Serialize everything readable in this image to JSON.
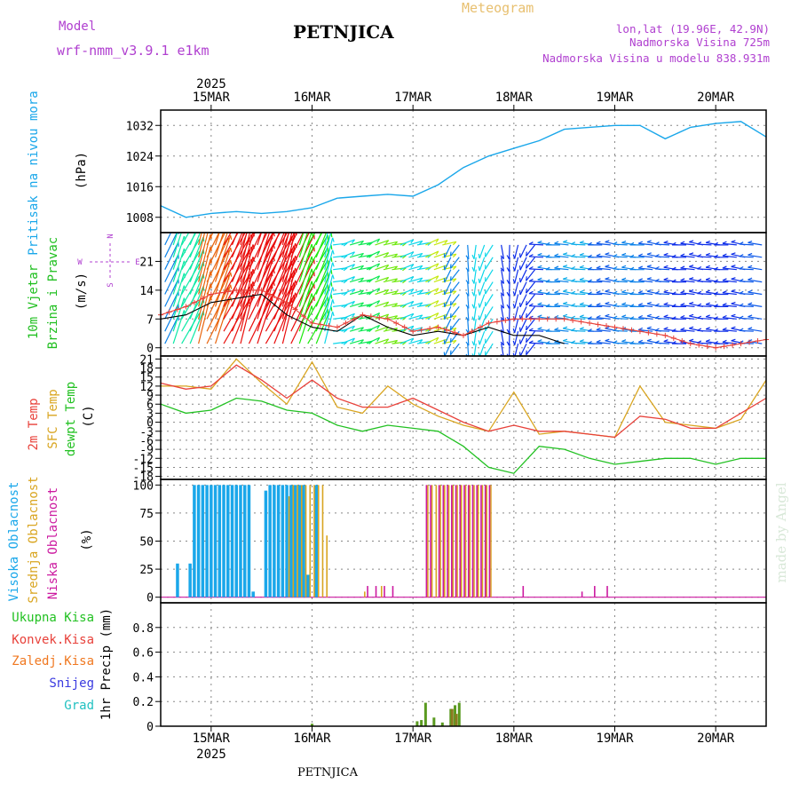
{
  "header": {
    "title": "PETNJICA",
    "subtitle": "Meteogram",
    "model_label": "Model",
    "model_name": "wrf-nmm_v3.9.1 e1km",
    "lonlat": "lon,lat (19.96E, 42.9N)",
    "elevation": "Nadmorska Visina 725m",
    "model_elevation": "Nadmorska Visina u modelu 838.931m",
    "watermark": "made by Angel",
    "footer": "PETNJICA",
    "year": "2025"
  },
  "colors": {
    "pressure": "#1aa7ea",
    "wind_label": "#1fbf1f",
    "temp2m": "#e8413a",
    "sfc": "#d9a520",
    "dewpt": "#22c122",
    "high_cloud": "#1aa7ea",
    "mid_cloud": "#d9a520",
    "low_cloud": "#cc1aa0",
    "total_precip": "#22c122",
    "conv_precip": "#e8413a",
    "frozen_precip": "#f07820",
    "snow": "#3a3ae0",
    "hail": "#22c1c1",
    "legend_purple": "#b040d0",
    "legend_orange": "#e8c070"
  },
  "chart_data": [
    {
      "type": "line",
      "id": "pressure",
      "ylabel": [
        "Pritisak na nivou mora",
        "(hPa)"
      ],
      "ylim": [
        1004,
        1036
      ],
      "yticks": [
        1008,
        1016,
        1024,
        1032
      ],
      "x_unit": "hours since 2025-03-14 12:00",
      "series": [
        {
          "name": "",
          "x": [
            0,
            6,
            12,
            18,
            24,
            30,
            36,
            42,
            48,
            54,
            60,
            66,
            72,
            78,
            84,
            90,
            96,
            102,
            108,
            114,
            120,
            126,
            132,
            138,
            144
          ],
          "values": [
            1011,
            1008,
            1009,
            1009.5,
            1009,
            1009.5,
            1010.5,
            1013,
            1013.5,
            1014,
            1013.5,
            1016.5,
            1021,
            1024,
            1026,
            1028,
            1031,
            1031.5,
            1032,
            1032,
            1028.5,
            1031.5,
            1032.5,
            1033,
            1029
          ]
        }
      ]
    },
    {
      "type": "line",
      "id": "wind",
      "ylabel": [
        "10m Vjetar",
        "Brzina i Pravac",
        "(m/s)"
      ],
      "ylim": [
        -2,
        28
      ],
      "yticks": [
        0,
        7,
        14,
        21
      ],
      "compass": {
        "n": "N",
        "s": "S",
        "e": "E",
        "w": "W"
      },
      "series": [
        {
          "name": "",
          "x": [
            0,
            6,
            12,
            18,
            24,
            30,
            36,
            42,
            48,
            54,
            60,
            66,
            72,
            78,
            84,
            90,
            96
          ],
          "values": [
            7,
            8,
            11,
            12,
            13,
            8,
            5,
            4,
            8,
            5,
            3,
            4,
            3,
            5,
            3,
            3,
            1
          ]
        },
        {
          "name": "",
          "x": [
            0,
            6,
            12,
            18,
            24,
            30,
            36,
            42,
            48,
            54,
            60,
            66,
            72,
            78,
            84,
            90,
            96,
            102,
            108,
            114,
            120,
            126,
            132,
            138,
            144
          ],
          "values": [
            8,
            10,
            13,
            14,
            14,
            11,
            6,
            5,
            8,
            7,
            4,
            5,
            3,
            6,
            7,
            7,
            7,
            6,
            5,
            4,
            3,
            1,
            0,
            1,
            2
          ]
        }
      ],
      "barb_speeds": [
        8,
        12,
        24,
        26,
        27,
        27,
        16,
        10,
        14,
        18,
        10,
        20,
        8,
        10,
        6,
        6,
        8,
        9,
        7,
        8,
        7,
        6,
        6,
        6,
        7
      ]
    },
    {
      "type": "line",
      "id": "temperature",
      "ylabel": [
        "2m Temp",
        "SFC Temp",
        "dewpt Temp",
        "(C)"
      ],
      "ylim": [
        -19,
        22
      ],
      "yticks": [
        -18,
        -15,
        -12,
        -9,
        -6,
        -3,
        0,
        3,
        6,
        9,
        12,
        15,
        18,
        21
      ],
      "series": [
        {
          "name": "2m Temp",
          "x": [
            0,
            6,
            12,
            18,
            24,
            30,
            36,
            42,
            48,
            54,
            60,
            66,
            72,
            78,
            84,
            90,
            96,
            102,
            108,
            114,
            120,
            126,
            132,
            138,
            144
          ],
          "values": [
            13,
            11,
            12,
            19,
            14,
            8,
            14,
            8,
            5,
            5,
            8,
            4,
            0,
            -3,
            -1,
            -3,
            -3,
            -4,
            -5,
            2,
            1,
            -2,
            -2,
            3,
            8
          ]
        },
        {
          "name": "SFC Temp",
          "x": [
            0,
            6,
            12,
            18,
            24,
            30,
            36,
            42,
            48,
            54,
            60,
            66,
            72,
            78,
            84,
            90,
            96,
            102,
            108,
            114,
            120,
            126,
            132,
            138,
            144
          ],
          "values": [
            12,
            12,
            11,
            21,
            13,
            6,
            20,
            5,
            3,
            12,
            6,
            2,
            -1,
            -3,
            10,
            -4,
            -3,
            -4,
            -5,
            12,
            0,
            -1,
            -2,
            1,
            14
          ]
        },
        {
          "name": "dewpt Temp",
          "x": [
            0,
            6,
            12,
            18,
            24,
            30,
            36,
            42,
            48,
            54,
            60,
            66,
            72,
            78,
            84,
            90,
            96,
            102,
            108,
            114,
            120,
            126,
            132,
            138,
            144
          ],
          "values": [
            6,
            3,
            4,
            8,
            7,
            4,
            3,
            -1,
            -3,
            -1,
            -2,
            -3,
            -8,
            -15,
            -17,
            -8,
            -9,
            -12,
            -14,
            -13,
            -12,
            -12,
            -14,
            -12,
            -12
          ]
        }
      ]
    },
    {
      "type": "bar",
      "id": "cloud",
      "ylabel": [
        "Visoka Oblacnost",
        "Srednja Oblacnost",
        "Niska Oblacnost",
        "(%)"
      ],
      "ylim": [
        -5,
        105
      ],
      "yticks": [
        0,
        25,
        50,
        75,
        100
      ],
      "series": [
        {
          "name": "Visoka Oblacnost",
          "x": [
            4,
            7,
            8,
            9,
            10,
            11,
            12,
            13,
            14,
            15,
            16,
            17,
            18,
            19,
            20,
            21,
            22,
            25,
            26,
            27,
            28,
            29,
            30,
            31,
            32,
            33,
            34,
            35,
            37
          ],
          "values": [
            30,
            30,
            100,
            100,
            100,
            100,
            100,
            100,
            100,
            100,
            100,
            100,
            100,
            100,
            100,
            100,
            5,
            95,
            100,
            100,
            100,
            100,
            100,
            100,
            100,
            100,
            100,
            20,
            100
          ]
        },
        {
          "name": "Srednja Oblacnost",
          "x": [
            30,
            31,
            32,
            33,
            34,
            35,
            36,
            37,
            38,
            39,
            48,
            52,
            63,
            64,
            65,
            66,
            67,
            68,
            69,
            70,
            71,
            72,
            73,
            74,
            75,
            76,
            77,
            78
          ],
          "values": [
            90,
            100,
            100,
            100,
            100,
            100,
            100,
            100,
            100,
            55,
            5,
            10,
            100,
            100,
            100,
            100,
            100,
            100,
            100,
            100,
            100,
            100,
            100,
            100,
            100,
            100,
            100,
            100
          ]
        },
        {
          "name": "Niska Oblacnost",
          "x": [
            49,
            51,
            53,
            55,
            63,
            64,
            66,
            67,
            68,
            69,
            70,
            71,
            72,
            73,
            74,
            75,
            76,
            77,
            78,
            86,
            100,
            103,
            106
          ],
          "values": [
            10,
            10,
            10,
            10,
            100,
            100,
            100,
            100,
            100,
            100,
            100,
            100,
            100,
            100,
            100,
            100,
            100,
            100,
            100,
            10,
            5,
            10,
            10
          ]
        }
      ]
    },
    {
      "type": "bar",
      "id": "precip",
      "ylabel": [
        "1hr Precip (mm)"
      ],
      "legend": [
        "Ukupna Kisa",
        "Konvek.Kisa",
        "Zaledj.Kisa",
        "Snijeg",
        "Grad"
      ],
      "ylim": [
        0,
        1.0
      ],
      "yticks": [
        0,
        0.2,
        0.4,
        0.6,
        0.8
      ],
      "ytick_labels": [
        "0",
        "0.2",
        "0.4",
        "0.6",
        "0.8"
      ],
      "series": [
        {
          "name": "Ukupna Kisa",
          "x": [
            36,
            61,
            62,
            63,
            65,
            67,
            69,
            70,
            71
          ],
          "values": [
            0.02,
            0.04,
            0.05,
            0.19,
            0.07,
            0.03,
            0.14,
            0.17,
            0.19
          ]
        },
        {
          "name": "Konvek.Kisa",
          "x": [
            69,
            70
          ],
          "values": [
            0.14,
            0.1
          ]
        },
        {
          "name": "Zaledj.Kisa",
          "x": [],
          "values": []
        },
        {
          "name": "Snijeg",
          "x": [],
          "values": []
        },
        {
          "name": "Grad",
          "x": [],
          "values": []
        }
      ]
    }
  ],
  "time_axis": {
    "unit": "hours since 2025-03-14 12:00",
    "range": [
      0,
      144
    ],
    "ticks": [
      12,
      36,
      60,
      84,
      108,
      132
    ],
    "labels": [
      "15MAR",
      "16MAR",
      "17MAR",
      "18MAR",
      "19MAR",
      "20MAR"
    ],
    "year_tick": 12
  }
}
